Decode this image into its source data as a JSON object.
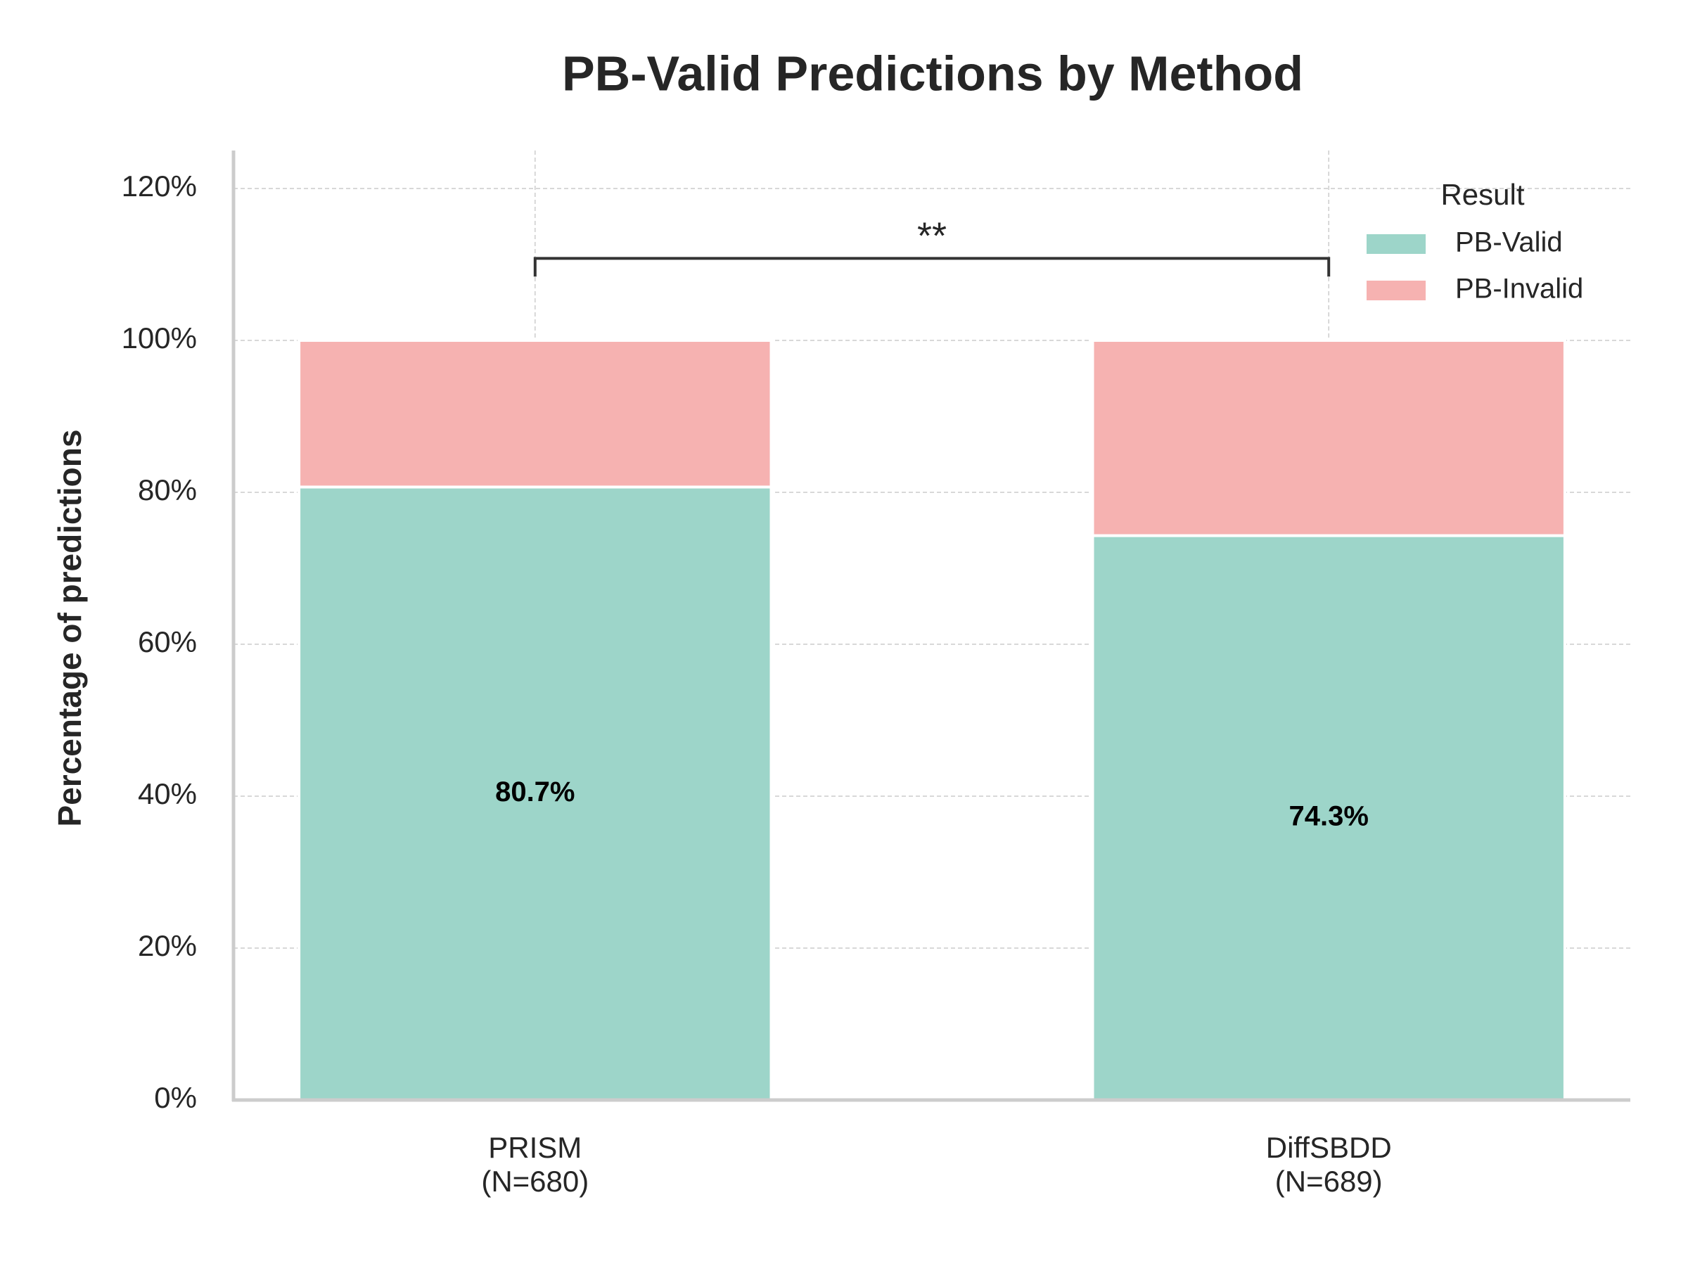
{
  "chart_data": {
    "type": "stacked_bar",
    "title": "PB-Valid Predictions by Method",
    "ylabel": "Percentage of predictions",
    "categories": [
      "PRISM\n(N=680)",
      "DiffSBDD\n(N=689)"
    ],
    "series": [
      {
        "name": "PB-Valid",
        "color": "#9dd5c9",
        "values": [
          80.7,
          74.3
        ],
        "value_labels": [
          "80.7%",
          "74.3%"
        ]
      },
      {
        "name": "PB-Invalid",
        "color": "#f6b2b1",
        "values": [
          19.3,
          25.7
        ]
      }
    ],
    "ylim": [
      0,
      125
    ],
    "yticks": [
      {
        "value": 0,
        "label": "0%"
      },
      {
        "value": 20,
        "label": "20%"
      },
      {
        "value": 40,
        "label": "40%"
      },
      {
        "value": 60,
        "label": "60%"
      },
      {
        "value": 80,
        "label": "80%"
      },
      {
        "value": 100,
        "label": "100%"
      },
      {
        "value": 120,
        "label": "120%"
      }
    ],
    "grid": true,
    "legend": {
      "title": "Result",
      "loc": "upper right"
    },
    "annotation": "**"
  }
}
